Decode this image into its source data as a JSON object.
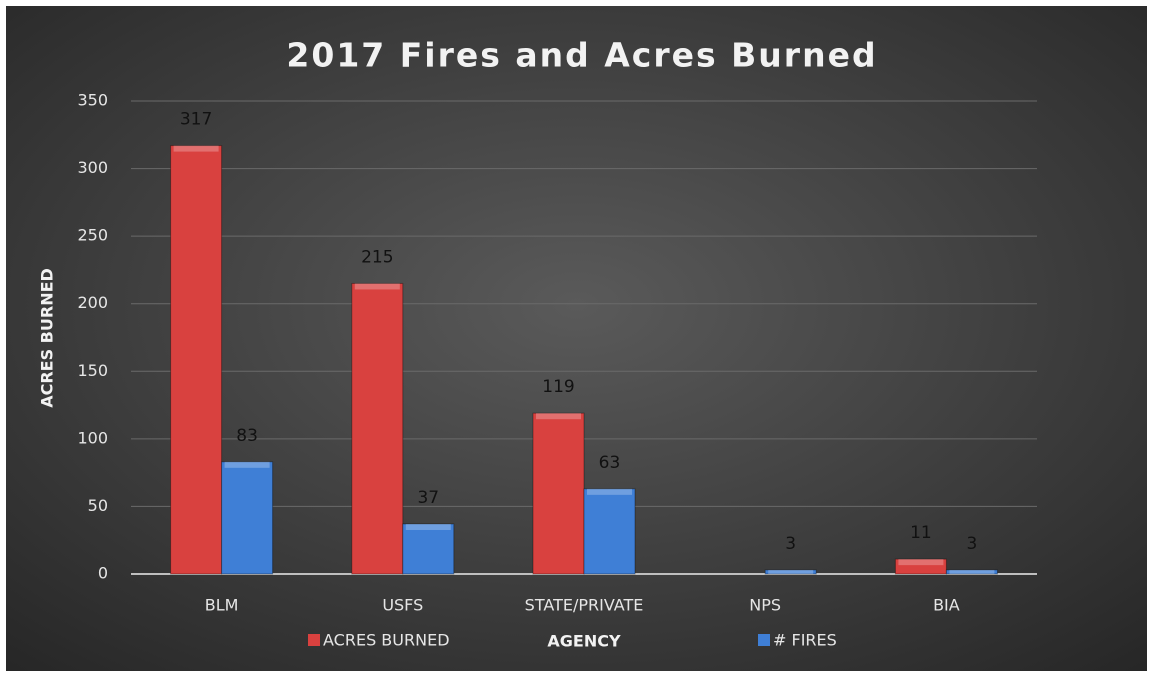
{
  "chart_data": {
    "type": "bar",
    "title": "2017 Fires and Acres Burned",
    "x_label": "AGENCY",
    "y_label": "ACRES BURNED",
    "categories": [
      "BLM",
      "USFS",
      "STATE/PRIVATE",
      "NPS",
      "BIA"
    ],
    "series": [
      {
        "name": "ACRES BURNED",
        "color": "#d9413f",
        "values": [
          317,
          215,
          119,
          null,
          11
        ]
      },
      {
        "name": "# FIRES",
        "color": "#3f7fd6",
        "values": [
          83,
          37,
          63,
          3,
          3
        ]
      }
    ],
    "ylim": [
      0,
      350
    ],
    "yticks": [
      0,
      50,
      100,
      150,
      200,
      250,
      300,
      350
    ],
    "grid": true
  }
}
